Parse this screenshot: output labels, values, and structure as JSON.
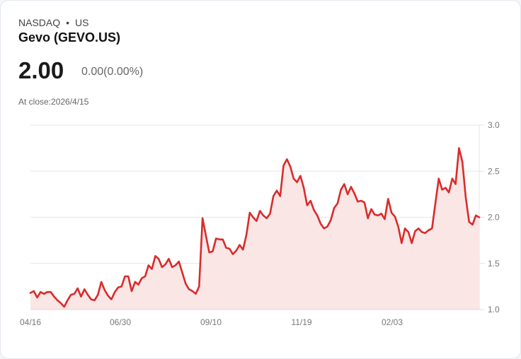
{
  "header": {
    "exchange": "NASDAQ",
    "region": "US",
    "title": "Gevo (GEVO.US)",
    "price": "2.00",
    "change": "0.00(0.00%)",
    "close_label": "At close:2026/4/15"
  },
  "colors": {
    "line": "#d92b2b",
    "fill": "#fbe6e6",
    "grid": "#e6e6e6"
  },
  "chart_data": {
    "type": "area",
    "title": "Gevo (GEVO.US)",
    "xlabel": "",
    "ylabel": "",
    "ylim": [
      1.0,
      3.0
    ],
    "yticks": [
      "3.0",
      "2.5",
      "2.0",
      "1.5",
      "1.0"
    ],
    "xticks": [
      "04/16",
      "06/30",
      "09/10",
      "11/19",
      "02/03"
    ],
    "grid": true,
    "y_axis_position": "right",
    "values": [
      1.18,
      1.2,
      1.13,
      1.19,
      1.17,
      1.19,
      1.19,
      1.14,
      1.1,
      1.07,
      1.03,
      1.1,
      1.16,
      1.17,
      1.23,
      1.14,
      1.22,
      1.16,
      1.11,
      1.1,
      1.16,
      1.3,
      1.21,
      1.15,
      1.11,
      1.19,
      1.24,
      1.25,
      1.36,
      1.36,
      1.2,
      1.3,
      1.27,
      1.34,
      1.36,
      1.48,
      1.44,
      1.58,
      1.55,
      1.46,
      1.49,
      1.55,
      1.46,
      1.48,
      1.52,
      1.4,
      1.28,
      1.22,
      1.2,
      1.17,
      1.25,
      1.99,
      1.8,
      1.62,
      1.63,
      1.77,
      1.76,
      1.76,
      1.67,
      1.66,
      1.6,
      1.64,
      1.7,
      1.65,
      1.81,
      2.05,
      2.0,
      1.96,
      2.07,
      2.02,
      1.99,
      2.04,
      2.23,
      2.29,
      2.23,
      2.56,
      2.63,
      2.55,
      2.42,
      2.38,
      2.45,
      2.32,
      2.13,
      2.18,
      2.08,
      2.02,
      1.93,
      1.88,
      1.9,
      1.97,
      2.1,
      2.15,
      2.3,
      2.36,
      2.25,
      2.33,
      2.26,
      2.17,
      2.18,
      2.16,
      1.99,
      2.09,
      2.03,
      2.02,
      2.04,
      1.98,
      2.2,
      2.05,
      2.01,
      1.9,
      1.72,
      1.88,
      1.84,
      1.72,
      1.85,
      1.88,
      1.84,
      1.83,
      1.86,
      1.88,
      2.15,
      2.42,
      2.3,
      2.32,
      2.27,
      2.42,
      2.36,
      2.75,
      2.6,
      2.22,
      1.95,
      1.92,
      2.02,
      2.0
    ],
    "last_value": 2.0
  }
}
